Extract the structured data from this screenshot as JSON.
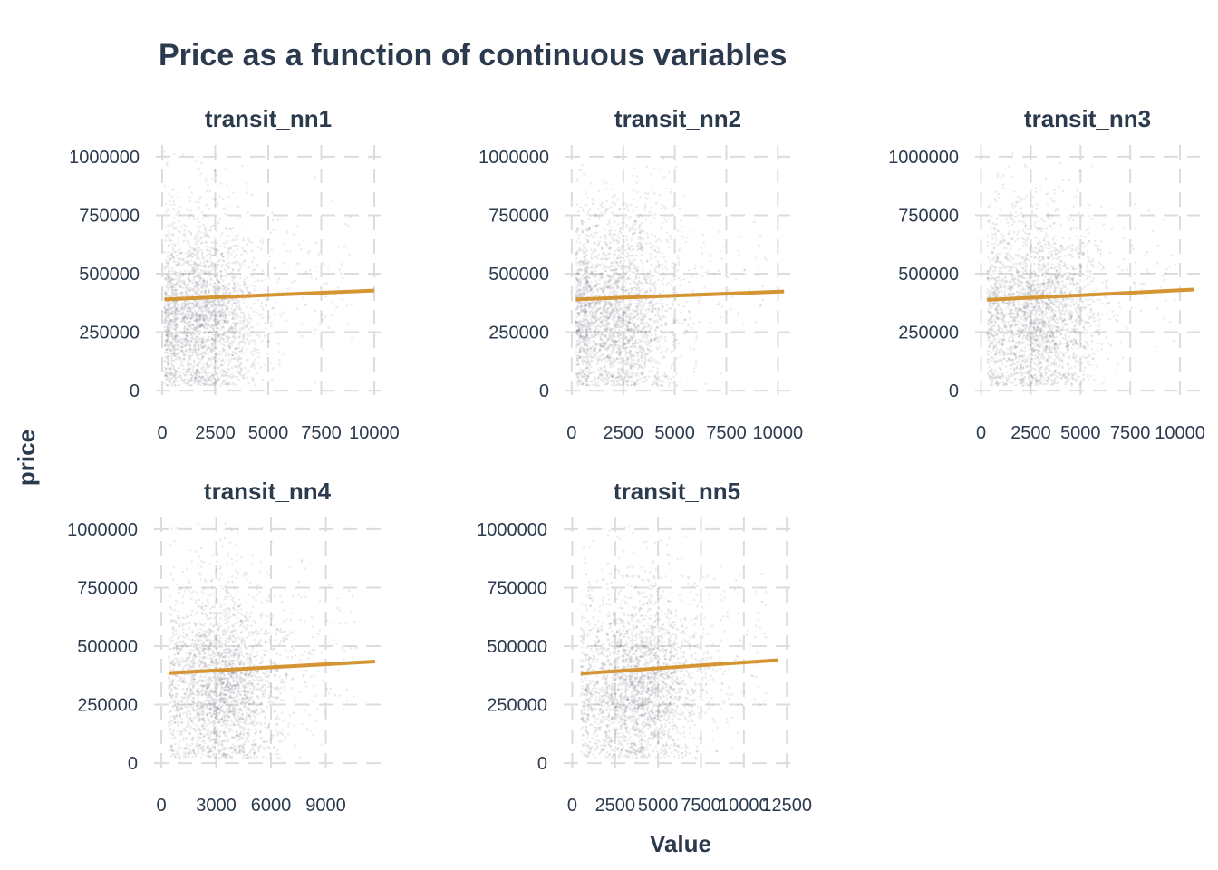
{
  "chart_data": {
    "type": "scatter",
    "title": "Price as a function of continuous variables",
    "xlabel": "Value",
    "ylabel": "price",
    "point_color": "#2a2d3e",
    "line_color": "#d69534",
    "grid": true,
    "y_ticks": [
      0,
      250000,
      500000,
      750000,
      1000000
    ],
    "y_tick_labels": [
      "0",
      "250000",
      "500000",
      "750000",
      "1000000"
    ],
    "panels": [
      {
        "label": "transit_nn1",
        "xlim": [
          -300,
          10300
        ],
        "ylim": [
          -50000,
          1050000
        ],
        "x_ticks": [
          0,
          2500,
          5000,
          7500,
          10000
        ],
        "x_tick_labels": [
          "0",
          "2500",
          "5000",
          "7500",
          "10000"
        ],
        "cloud": {
          "x_center": 1800,
          "x_spread": 1400,
          "x_min": 100,
          "x_max": 9000,
          "y_center": 300000
        },
        "trend": {
          "x": [
            100,
            10000
          ],
          "y": [
            390000,
            428000
          ]
        }
      },
      {
        "label": "transit_nn2",
        "xlim": [
          -300,
          10600
        ],
        "ylim": [
          -50000,
          1050000
        ],
        "x_ticks": [
          0,
          2500,
          5000,
          7500,
          10000
        ],
        "x_tick_labels": [
          "0",
          "2500",
          "5000",
          "7500",
          "10000"
        ],
        "cloud": {
          "x_center": 2100,
          "x_spread": 1500,
          "x_min": 200,
          "x_max": 9500,
          "y_center": 300000
        },
        "trend": {
          "x": [
            200,
            10300
          ],
          "y": [
            390000,
            424000
          ]
        }
      },
      {
        "label": "transit_nn3",
        "xlim": [
          -300,
          11000
        ],
        "ylim": [
          -50000,
          1050000
        ],
        "x_ticks": [
          0,
          2500,
          5000,
          7500,
          10000
        ],
        "x_tick_labels": [
          "0",
          "2500",
          "5000",
          "7500",
          "10000"
        ],
        "cloud": {
          "x_center": 2600,
          "x_spread": 1600,
          "x_min": 300,
          "x_max": 9800,
          "y_center": 305000
        },
        "trend": {
          "x": [
            300,
            10700
          ],
          "y": [
            388000,
            432000
          ]
        }
      },
      {
        "label": "transit_nn4",
        "xlim": [
          -400,
          12000
        ],
        "ylim": [
          -50000,
          1050000
        ],
        "x_ticks": [
          0,
          3000,
          6000,
          9000
        ],
        "x_tick_labels": [
          "0",
          "3000",
          "6000",
          "9000"
        ],
        "cloud": {
          "x_center": 3200,
          "x_spread": 1700,
          "x_min": 400,
          "x_max": 11000,
          "y_center": 310000
        },
        "trend": {
          "x": [
            400,
            11700
          ],
          "y": [
            385000,
            434000
          ]
        }
      },
      {
        "label": "transit_nn5",
        "xlim": [
          -500,
          12700
        ],
        "ylim": [
          -50000,
          1050000
        ],
        "x_ticks": [
          0,
          2500,
          5000,
          7500,
          10000,
          12500
        ],
        "x_tick_labels": [
          "0",
          "2500",
          "5000",
          "7500",
          "10000",
          "12500"
        ],
        "cloud": {
          "x_center": 3700,
          "x_spread": 1900,
          "x_min": 500,
          "x_max": 11300,
          "y_center": 310000
        },
        "trend": {
          "x": [
            500,
            12000
          ],
          "y": [
            383000,
            440000
          ]
        }
      }
    ]
  }
}
